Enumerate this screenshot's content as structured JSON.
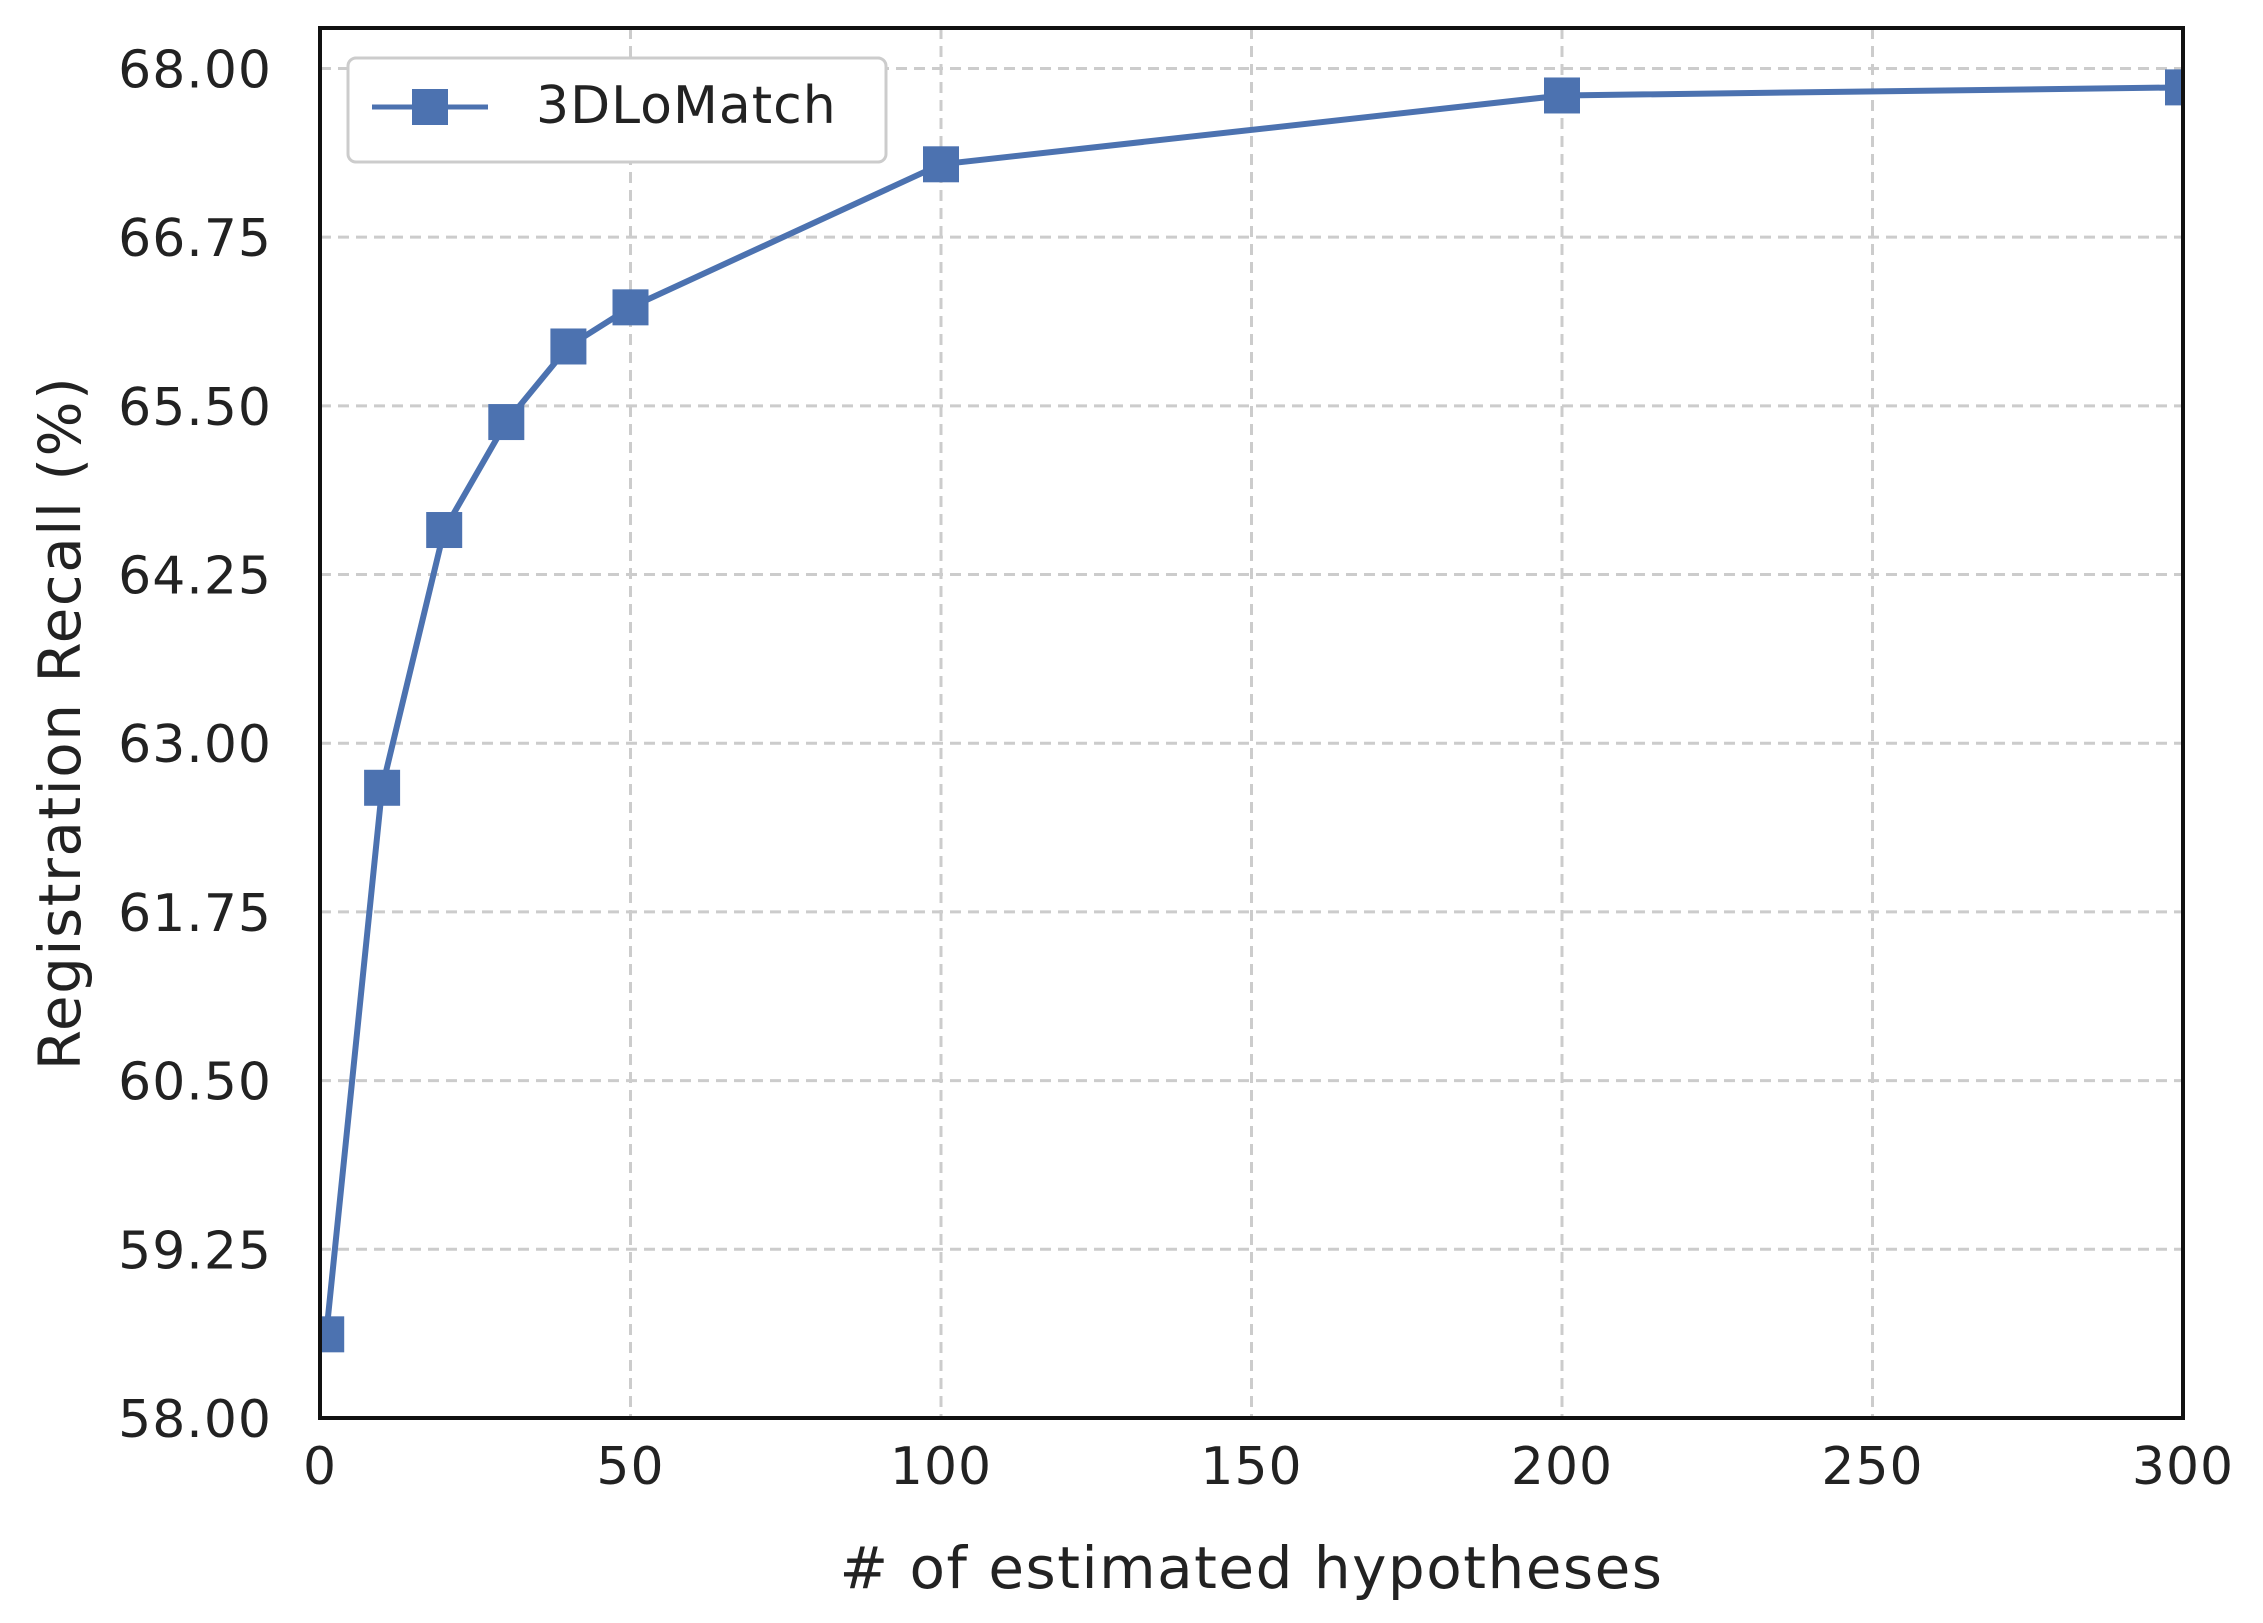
{
  "chart_data": {
    "type": "line",
    "title": "",
    "xlabel": "# of estimated hypotheses",
    "ylabel": "Registration Recall (%)",
    "xlim": [
      0,
      300
    ],
    "ylim": [
      58.0,
      68.3
    ],
    "xticks": [
      0,
      50,
      100,
      150,
      200,
      250,
      300
    ],
    "xtick_labels": [
      "0",
      "50",
      "100",
      "150",
      "200",
      "250",
      "300"
    ],
    "yticks": [
      58.0,
      59.25,
      60.5,
      61.75,
      63.0,
      64.25,
      65.5,
      66.75,
      68.0
    ],
    "ytick_labels": [
      "58.00",
      "59.25",
      "60.50",
      "61.75",
      "63.00",
      "64.25",
      "65.50",
      "66.75",
      "68.00"
    ],
    "grid": true,
    "legend_position": "top-left",
    "series": [
      {
        "name": "3DLoMatch",
        "color": "#4c72b0",
        "marker": "square",
        "x": [
          1,
          10,
          20,
          30,
          40,
          50,
          100,
          200,
          300
        ],
        "y": [
          58.62,
          62.67,
          64.58,
          65.38,
          65.94,
          66.23,
          67.29,
          67.8,
          67.86
        ]
      }
    ]
  }
}
